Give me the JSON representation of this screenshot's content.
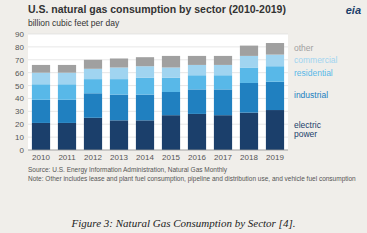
{
  "chart_data": {
    "type": "bar",
    "stacked": true,
    "title": "U.S. natural gas consumption by sector (2010-2019)",
    "subtitle": "billion cubic feet per day",
    "source_text": "Source: U.S. Energy Information Administration, Natural Gas Monthly",
    "note_text": "Note: Other includes lease and plant fuel consumption, pipeline and distribution use, and vehicle fuel consumption",
    "caption": "Figure 3: Natural Gas Consumption by Sector [4].",
    "logo_text": "eia",
    "categories": [
      "2010",
      "2011",
      "2012",
      "2013",
      "2014",
      "2015",
      "2016",
      "2017",
      "2018",
      "2019"
    ],
    "series": [
      {
        "name": "electric\npower",
        "color": "#1b3f6b",
        "values": [
          21,
          21,
          25,
          23,
          23,
          27,
          28,
          27,
          29,
          31
        ]
      },
      {
        "name": "industrial",
        "color": "#2080c0",
        "values": [
          18,
          18,
          19,
          20,
          20,
          18,
          19,
          20,
          23,
          22
        ]
      },
      {
        "name": "residential",
        "color": "#58b8e8",
        "values": [
          12,
          12,
          11,
          12,
          13,
          11,
          11,
          11,
          12,
          12
        ]
      },
      {
        "name": "commercial",
        "color": "#a0d4f0",
        "values": [
          9,
          9,
          8,
          9,
          9,
          8,
          8,
          8,
          9,
          9
        ]
      },
      {
        "name": "other",
        "color": "#a0a0a0",
        "values": [
          6,
          6,
          7,
          7,
          7,
          9,
          7,
          7,
          8,
          9
        ]
      }
    ],
    "ylim": [
      0,
      90
    ],
    "yticks": [
      0,
      10,
      20,
      30,
      40,
      50,
      60,
      70,
      80,
      90
    ],
    "grid": true,
    "legend": "right"
  }
}
